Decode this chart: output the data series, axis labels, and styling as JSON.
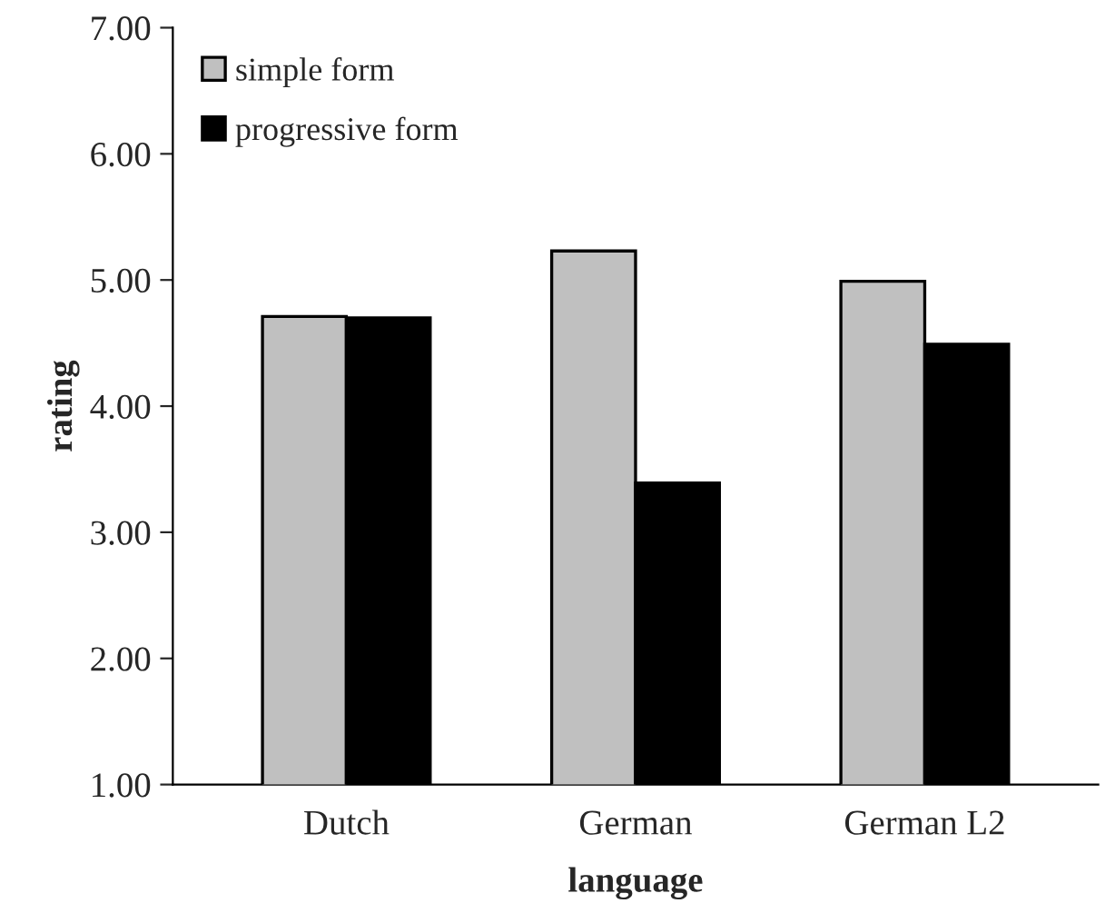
{
  "chart_data": {
    "type": "bar",
    "xlabel": "language",
    "ylabel": "rating",
    "categories": [
      "Dutch",
      "German",
      "German L2"
    ],
    "series": [
      {
        "name": "simple form",
        "color": "#c0c0c0",
        "values": [
          4.71,
          5.23,
          4.99
        ]
      },
      {
        "name": "progressive form",
        "color": "#000000",
        "values": [
          4.7,
          3.39,
          4.49
        ]
      }
    ],
    "ylim": [
      1,
      7
    ],
    "yticks": [
      {
        "value": 1,
        "label": "1.00"
      },
      {
        "value": 2,
        "label": "2.00"
      },
      {
        "value": 3,
        "label": "3.00"
      },
      {
        "value": 4,
        "label": "4.00"
      },
      {
        "value": 5,
        "label": "5.00"
      },
      {
        "value": 6,
        "label": "6.00"
      },
      {
        "value": 7,
        "label": "7.00"
      }
    ],
    "legend": "top left",
    "grid": false
  }
}
